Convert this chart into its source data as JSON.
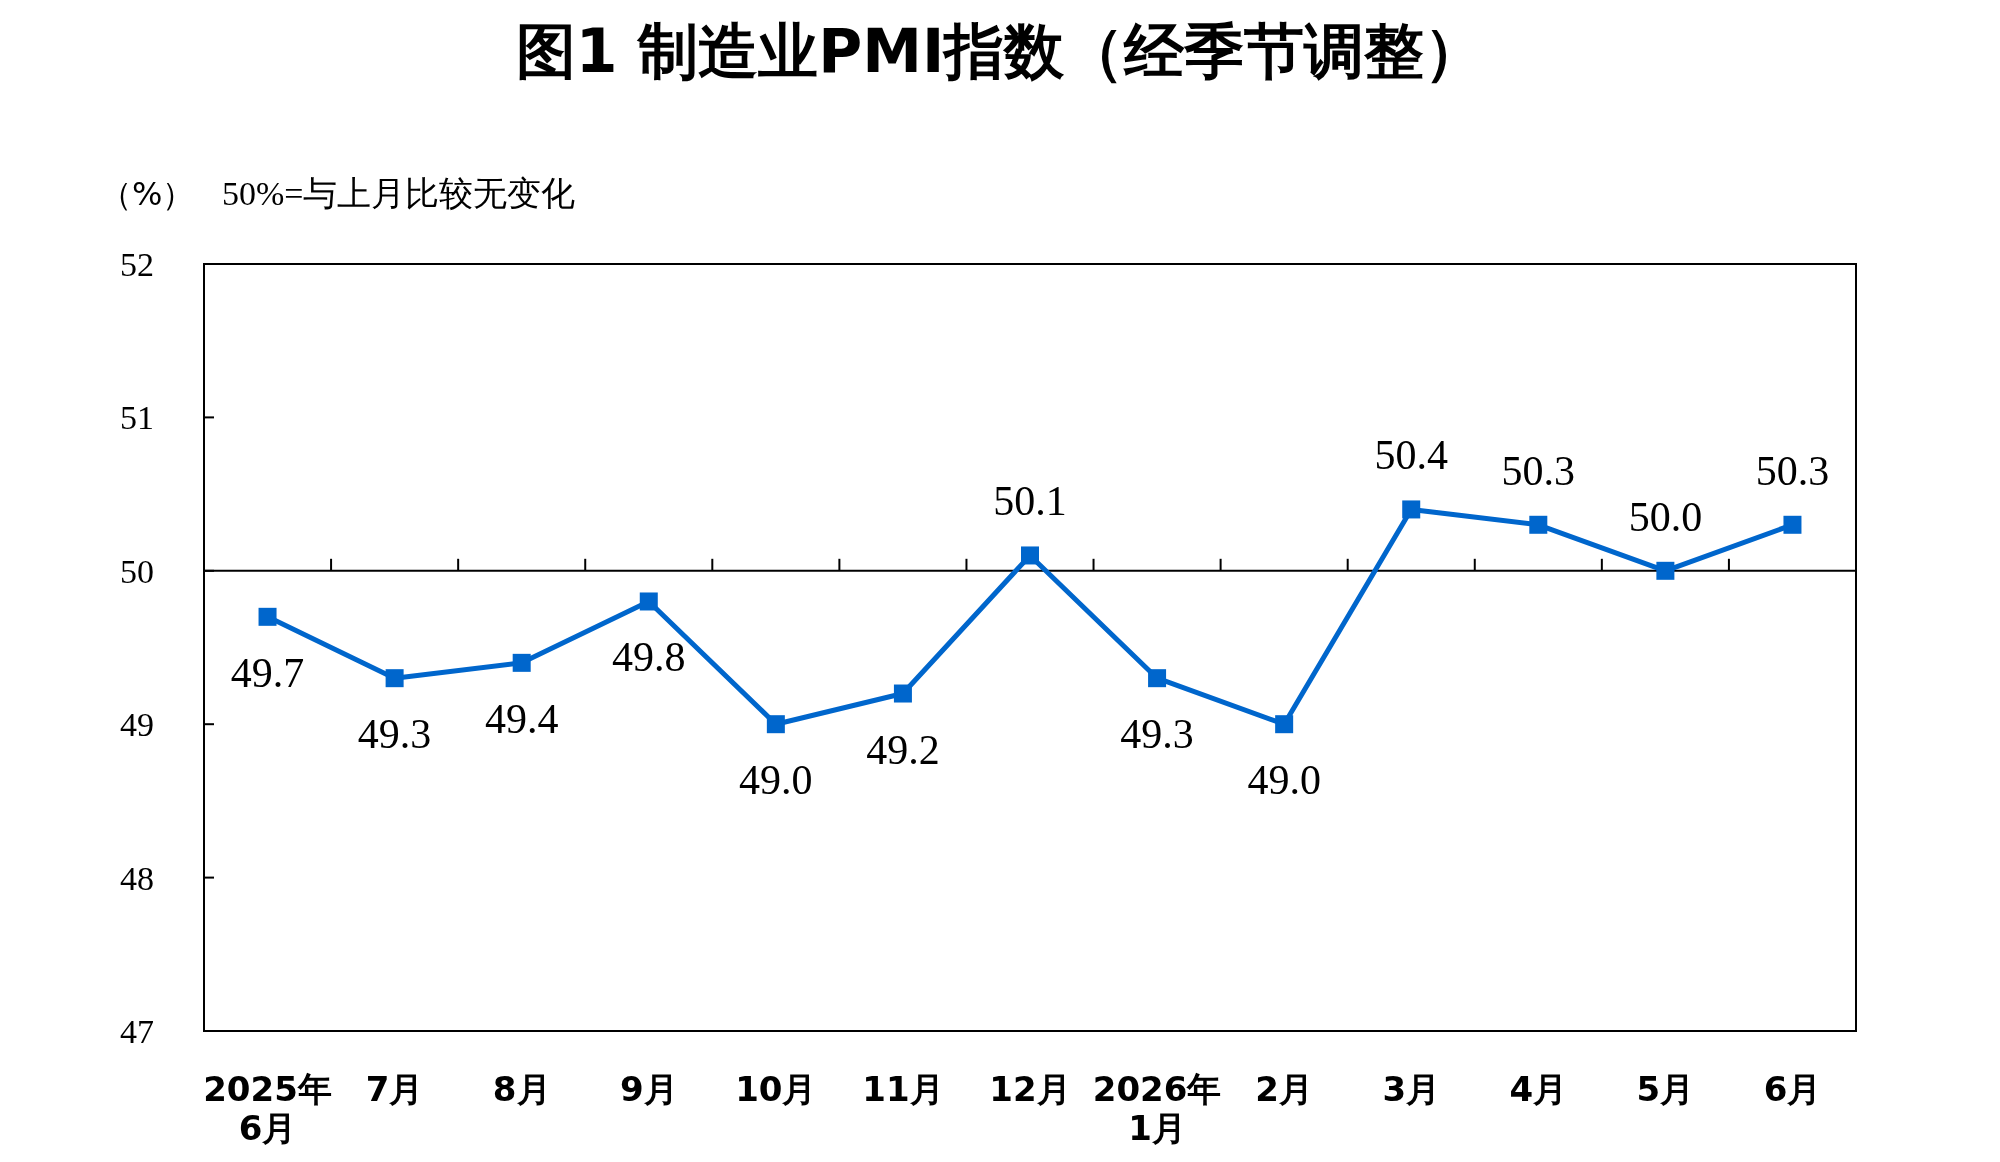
{
  "chart_data": {
    "type": "line",
    "title": "图1 制造业PMI指数（经季节调整）",
    "ylabel": "（%）",
    "annotations": [
      "50%=与上月比较无变化"
    ],
    "categories": [
      "2025年\n6月",
      "7月",
      "8月",
      "9月",
      "10月",
      "11月",
      "12月",
      "2026年\n1月",
      "2月",
      "3月",
      "4月",
      "5月",
      "6月"
    ],
    "series": [
      {
        "color": "#0066cc",
        "values": [
          49.7,
          49.3,
          49.4,
          49.8,
          49.0,
          49.2,
          50.1,
          49.3,
          49.0,
          50.4,
          50.3,
          50.0,
          50.3
        ],
        "value_labels": [
          "49.7",
          "49.3",
          "49.4",
          "49.8",
          "49.0",
          "49.2",
          "50.1",
          "49.3",
          "49.0",
          "50.4",
          "50.3",
          "50.0",
          "50.3"
        ]
      }
    ],
    "ylim": [
      47,
      52
    ],
    "yticks": [
      47,
      48,
      49,
      50,
      51,
      52
    ],
    "ref_lines": [
      {
        "axis": "y",
        "value": 50,
        "color": "#000000"
      }
    ],
    "marker": "square"
  }
}
